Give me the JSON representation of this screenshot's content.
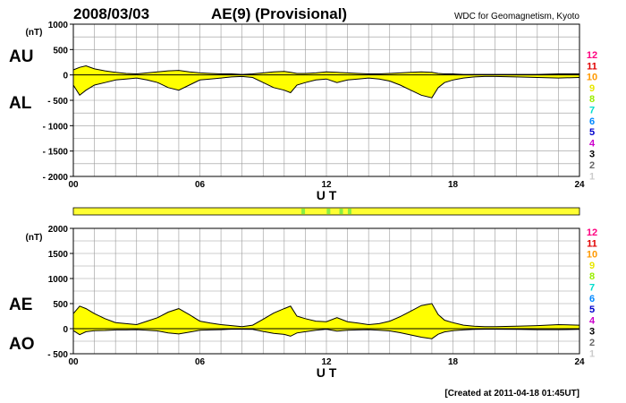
{
  "header": {
    "date": "2008/03/03",
    "title": "AE(9)  (Provisional)",
    "source": "WDC for Geomagnetism, Kyoto"
  },
  "footer": {
    "created": "[Created at 2011-04-18 01:45UT]"
  },
  "station_legend": {
    "items": [
      "12",
      "11",
      "10",
      "9",
      "8",
      "7",
      "6",
      "5",
      "4",
      "3",
      "2",
      "1"
    ],
    "colors": [
      "#ff0080",
      "#e00000",
      "#ff9900",
      "#e8e800",
      "#99ee00",
      "#00ddcc",
      "#0088ff",
      "#0000cc",
      "#cc00cc",
      "#000000",
      "#666666",
      "#cccccc"
    ]
  },
  "colors": {
    "fill": "#ffff00",
    "bar": "#ffff33",
    "bar_marker": "#88ee44",
    "grid": "#999999"
  },
  "chart_data": [
    {
      "type": "area",
      "panel": "top",
      "upper_label": "AU",
      "lower_label": "AL",
      "unit": "(nT)",
      "xlabel": "U T",
      "ylim": [
        -2000,
        1000
      ],
      "yticks": [
        1000,
        500,
        0,
        -500,
        -1000,
        -1500,
        -2000
      ],
      "ytick_labels": [
        "1000",
        "500",
        "0",
        "- 500",
        "- 1000",
        "- 1500",
        "- 2000"
      ],
      "xlim": [
        0,
        24
      ],
      "xticks": [
        0,
        6,
        12,
        18,
        24
      ],
      "xtick_labels": [
        "00",
        "06",
        "12",
        "18",
        "24"
      ],
      "grid": true,
      "x": [
        0,
        0.3,
        0.6,
        1,
        1.5,
        2,
        2.5,
        3,
        3.5,
        4,
        4.5,
        5,
        5.5,
        6,
        6.5,
        7,
        7.5,
        8,
        8.5,
        9,
        9.5,
        10,
        10.3,
        10.6,
        11,
        11.5,
        12,
        12.5,
        13,
        13.5,
        14,
        14.5,
        15,
        15.5,
        16,
        16.5,
        17,
        17.3,
        17.6,
        18,
        18.5,
        19,
        19.5,
        20,
        21,
        22,
        23,
        24
      ],
      "series": [
        {
          "name": "AU",
          "values": [
            100,
            150,
            180,
            120,
            80,
            50,
            30,
            20,
            40,
            60,
            80,
            90,
            60,
            40,
            30,
            20,
            20,
            10,
            20,
            40,
            60,
            70,
            50,
            30,
            30,
            40,
            60,
            50,
            40,
            30,
            20,
            20,
            30,
            40,
            50,
            60,
            50,
            30,
            20,
            20,
            10,
            10,
            10,
            10,
            10,
            10,
            20,
            20
          ]
        },
        {
          "name": "AL",
          "values": [
            -200,
            -400,
            -300,
            -200,
            -150,
            -100,
            -80,
            -60,
            -100,
            -150,
            -250,
            -300,
            -200,
            -100,
            -80,
            -60,
            -40,
            -30,
            -50,
            -150,
            -250,
            -300,
            -350,
            -200,
            -150,
            -100,
            -80,
            -150,
            -100,
            -80,
            -60,
            -80,
            -120,
            -200,
            -300,
            -400,
            -450,
            -250,
            -150,
            -100,
            -60,
            -40,
            -30,
            -30,
            -40,
            -50,
            -60,
            -50
          ]
        }
      ]
    },
    {
      "type": "area",
      "panel": "bottom",
      "upper_label": "AE",
      "lower_label": "AO",
      "unit": "(nT)",
      "xlabel": "U T",
      "ylim": [
        -500,
        2000
      ],
      "yticks": [
        2000,
        1500,
        1000,
        500,
        0,
        -500
      ],
      "ytick_labels": [
        "2000",
        "1500",
        "1000",
        "500",
        "0",
        "- 500"
      ],
      "xlim": [
        0,
        24
      ],
      "xticks": [
        0,
        6,
        12,
        18,
        24
      ],
      "xtick_labels": [
        "00",
        "06",
        "12",
        "18",
        "24"
      ],
      "grid": true,
      "x": [
        0,
        0.3,
        0.6,
        1,
        1.5,
        2,
        2.5,
        3,
        3.5,
        4,
        4.5,
        5,
        5.5,
        6,
        6.5,
        7,
        7.5,
        8,
        8.5,
        9,
        9.5,
        10,
        10.3,
        10.6,
        11,
        11.5,
        12,
        12.5,
        13,
        13.5,
        14,
        14.5,
        15,
        15.5,
        16,
        16.5,
        17,
        17.3,
        17.6,
        18,
        18.5,
        19,
        19.5,
        20,
        21,
        22,
        23,
        24
      ],
      "series": [
        {
          "name": "AE",
          "values": [
            300,
            450,
            400,
            300,
            200,
            120,
            100,
            80,
            150,
            220,
            330,
            400,
            280,
            150,
            110,
            80,
            60,
            40,
            70,
            190,
            310,
            400,
            450,
            250,
            200,
            150,
            140,
            220,
            140,
            110,
            80,
            100,
            150,
            240,
            350,
            460,
            500,
            280,
            170,
            120,
            70,
            50,
            40,
            40,
            50,
            60,
            80,
            70
          ]
        },
        {
          "name": "AO",
          "values": [
            -40,
            -120,
            -60,
            -40,
            -35,
            -25,
            -25,
            -20,
            -30,
            -45,
            -85,
            -105,
            -70,
            -30,
            -25,
            -20,
            -10,
            -10,
            -15,
            -55,
            -95,
            -115,
            -150,
            -85,
            -60,
            -30,
            -10,
            -50,
            -30,
            -25,
            -20,
            -30,
            -45,
            -80,
            -125,
            -170,
            -200,
            -110,
            -65,
            -40,
            -25,
            -15,
            -10,
            -10,
            -15,
            -20,
            -20,
            -15
          ]
        }
      ]
    },
    {
      "type": "bar",
      "panel": "coverage-bar",
      "xlim": [
        0,
        24
      ],
      "markers": [
        10.9,
        12.1,
        12.7,
        13.1
      ]
    }
  ]
}
